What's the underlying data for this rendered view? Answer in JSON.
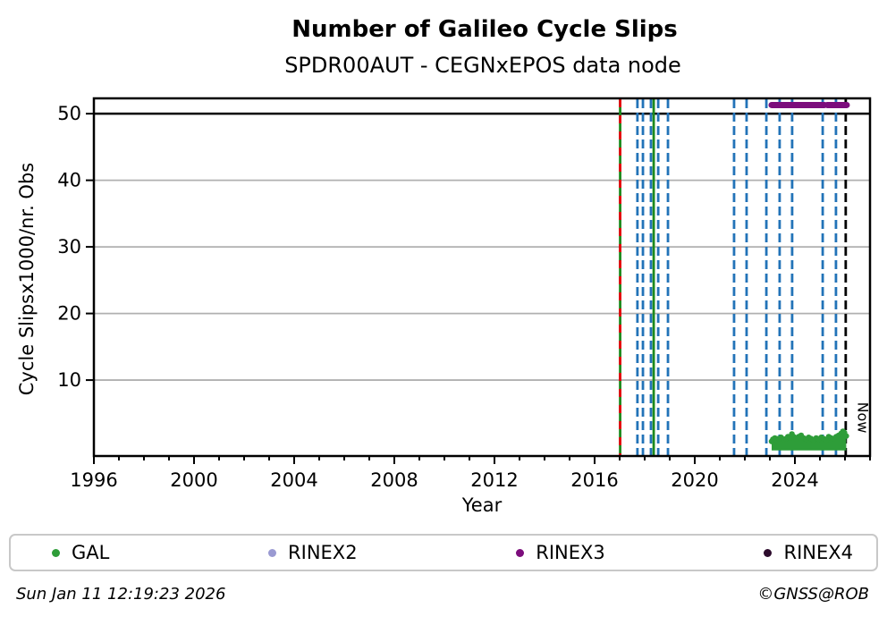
{
  "footer": {
    "timestamp": "Sun Jan 11 12:19:23 2026",
    "credit": "©GNSS@ROB"
  },
  "legend": [
    {
      "label": "GAL",
      "color": "#2e9d39"
    },
    {
      "label": "RINEX2",
      "color": "#9a9ad2"
    },
    {
      "label": "RINEX3",
      "color": "#7c0d7c"
    },
    {
      "label": "RINEX4",
      "color": "#2d0c2d"
    }
  ],
  "colors": {
    "grid": "#b0b0b0",
    "frame": "#000000",
    "blue_event": "#2273b8",
    "green_event": "#1d8a1d",
    "red_event": "#e8000d",
    "now_line": "#000000",
    "rinex3_line": "#7c0d7c",
    "gal_scatter": "#2e9d39"
  },
  "chart_data": {
    "type": "scatter",
    "title": "Number of Galileo Cycle Slips",
    "subtitle": "SPDR00AUT - CEGNxEPOS data node",
    "xlabel": "Year",
    "ylabel": "Cycle Slipsx1000/nr. Obs",
    "xlim": [
      1996,
      2027
    ],
    "ylim": [
      -1.4,
      52.3
    ],
    "x_major_ticks": [
      1996,
      2000,
      2004,
      2008,
      2012,
      2016,
      2020,
      2024
    ],
    "x_minor_step": 1,
    "y_ticks": [
      10,
      20,
      30,
      40,
      50
    ],
    "reference_line_y": 50,
    "grid": true,
    "legend_position": "bottom",
    "event_lines": [
      {
        "x": 2017.02,
        "color": "green",
        "style": "solid"
      },
      {
        "x": 2017.02,
        "color": "red",
        "style": "dashed"
      },
      {
        "x": 2017.71,
        "color": "blue",
        "style": "dashed"
      },
      {
        "x": 2017.93,
        "color": "blue",
        "style": "dashed"
      },
      {
        "x": 2018.25,
        "color": "blue",
        "style": "dashed"
      },
      {
        "x": 2018.36,
        "color": "green",
        "style": "solid"
      },
      {
        "x": 2018.54,
        "color": "blue",
        "style": "dashed"
      },
      {
        "x": 2018.93,
        "color": "blue",
        "style": "dashed"
      },
      {
        "x": 2021.57,
        "color": "blue",
        "style": "dashed"
      },
      {
        "x": 2022.07,
        "color": "blue",
        "style": "dashed"
      },
      {
        "x": 2022.86,
        "color": "blue",
        "style": "dashed"
      },
      {
        "x": 2023.39,
        "color": "blue",
        "style": "dashed"
      },
      {
        "x": 2023.89,
        "color": "blue",
        "style": "dashed"
      },
      {
        "x": 2025.11,
        "color": "blue",
        "style": "dashed"
      },
      {
        "x": 2025.64,
        "color": "blue",
        "style": "dashed"
      }
    ],
    "now_marker": {
      "x": 2026.03,
      "label": "Now"
    },
    "rinex3_availability": {
      "y": 51.3,
      "segments": [
        [
          2023.07,
          2025.18
        ],
        [
          2025.29,
          2026.07
        ]
      ]
    },
    "gal_series": {
      "name": "GAL",
      "base": -0.55,
      "top_profile": [
        [
          2023.07,
          0.8
        ],
        [
          2023.12,
          1.1
        ],
        [
          2023.2,
          1.3
        ],
        [
          2023.28,
          1.0
        ],
        [
          2023.35,
          1.2
        ],
        [
          2023.45,
          1.4
        ],
        [
          2023.55,
          1.1
        ],
        [
          2023.65,
          1.2
        ],
        [
          2023.72,
          1.5
        ],
        [
          2023.8,
          1.3
        ],
        [
          2023.88,
          1.9
        ],
        [
          2023.95,
          1.5
        ],
        [
          2024.05,
          1.2
        ],
        [
          2024.15,
          1.5
        ],
        [
          2024.25,
          1.7
        ],
        [
          2024.35,
          1.3
        ],
        [
          2024.45,
          1.1
        ],
        [
          2024.55,
          1.4
        ],
        [
          2024.65,
          1.2
        ],
        [
          2024.75,
          1.0
        ],
        [
          2024.85,
          1.3
        ],
        [
          2024.95,
          1.1
        ],
        [
          2025.05,
          1.4
        ],
        [
          2025.15,
          1.2
        ],
        [
          2025.25,
          1.0
        ],
        [
          2025.35,
          1.5
        ],
        [
          2025.45,
          1.3
        ],
        [
          2025.55,
          1.2
        ],
        [
          2025.65,
          1.5
        ],
        [
          2025.75,
          1.7
        ],
        [
          2025.85,
          2.0
        ],
        [
          2025.92,
          2.3
        ],
        [
          2025.98,
          2.1
        ],
        [
          2026.05,
          1.6
        ]
      ]
    }
  }
}
